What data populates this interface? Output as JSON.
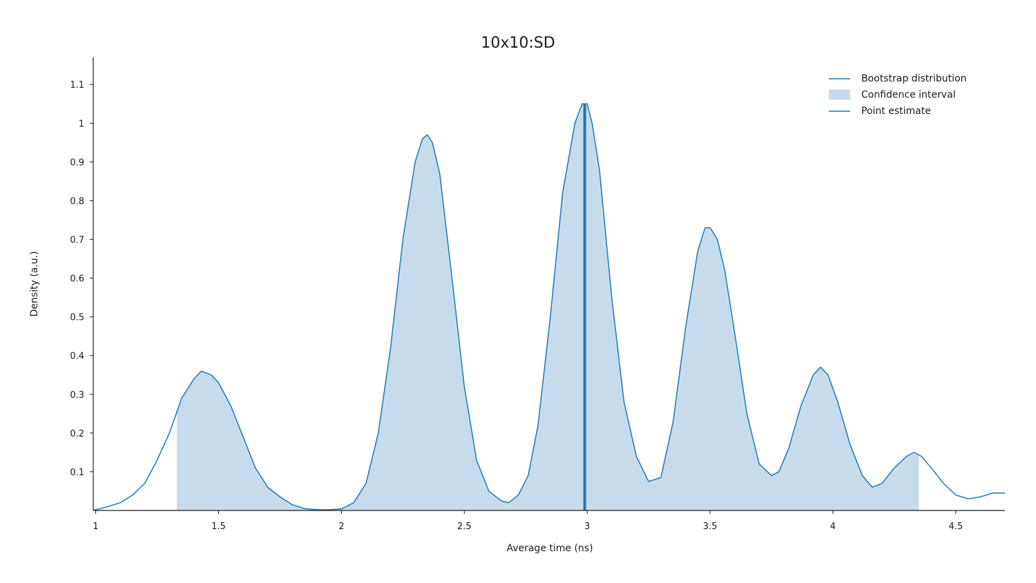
{
  "colors": {
    "line": "#1f77b4",
    "fill": "#c6dcec",
    "axis": "#1a1a1a"
  },
  "chart_data": {
    "type": "area",
    "title": "10x10:SD",
    "xlabel": "Average time (ns)",
    "ylabel": "Density (a.u.)",
    "xlim": [
      0.99,
      4.7
    ],
    "ylim": [
      0,
      1.17
    ],
    "xticks": [
      1,
      1.5,
      2,
      2.5,
      3,
      3.5,
      4,
      4.5
    ],
    "xtick_labels": [
      "1",
      "1.5",
      "2",
      "2.5",
      "3",
      "3.5",
      "4",
      "4.5"
    ],
    "yticks": [
      0.1,
      0.2,
      0.3,
      0.4,
      0.5,
      0.6,
      0.7,
      0.8,
      0.9,
      1,
      1.1
    ],
    "ytick_labels": [
      "0.1",
      "0.2",
      "0.3",
      "0.4",
      "0.5",
      "0.6",
      "0.7",
      "0.8",
      "0.9",
      "1",
      "1.1"
    ],
    "grid": false,
    "legend_position": "top-right",
    "legend": [
      "Bootstrap distribution",
      "Confidence interval",
      "Point estimate"
    ],
    "confidence_interval": [
      1.33,
      4.35
    ],
    "point_estimate": 2.99,
    "series": [
      {
        "name": "Bootstrap distribution",
        "x": [
          0.99,
          1.05,
          1.1,
          1.15,
          1.2,
          1.25,
          1.3,
          1.35,
          1.4,
          1.43,
          1.47,
          1.5,
          1.55,
          1.6,
          1.65,
          1.7,
          1.75,
          1.8,
          1.85,
          1.9,
          1.95,
          2.0,
          2.05,
          2.1,
          2.15,
          2.2,
          2.25,
          2.3,
          2.33,
          2.35,
          2.37,
          2.4,
          2.45,
          2.5,
          2.55,
          2.6,
          2.65,
          2.68,
          2.72,
          2.76,
          2.8,
          2.85,
          2.9,
          2.95,
          2.98,
          3.0,
          3.02,
          3.05,
          3.1,
          3.15,
          3.2,
          3.25,
          3.3,
          3.35,
          3.4,
          3.45,
          3.48,
          3.5,
          3.53,
          3.56,
          3.6,
          3.65,
          3.7,
          3.75,
          3.78,
          3.82,
          3.87,
          3.92,
          3.95,
          3.98,
          4.02,
          4.07,
          4.12,
          4.16,
          4.2,
          4.25,
          4.3,
          4.33,
          4.36,
          4.4,
          4.45,
          4.5,
          4.55,
          4.6,
          4.65,
          4.7
        ],
        "y": [
          0.0,
          0.01,
          0.02,
          0.04,
          0.07,
          0.13,
          0.2,
          0.29,
          0.34,
          0.36,
          0.35,
          0.33,
          0.27,
          0.19,
          0.11,
          0.06,
          0.035,
          0.015,
          0.005,
          0.002,
          0.002,
          0.004,
          0.02,
          0.07,
          0.2,
          0.42,
          0.7,
          0.9,
          0.96,
          0.97,
          0.95,
          0.87,
          0.6,
          0.32,
          0.13,
          0.05,
          0.025,
          0.02,
          0.04,
          0.09,
          0.22,
          0.5,
          0.82,
          1.0,
          1.05,
          1.05,
          1.0,
          0.88,
          0.55,
          0.28,
          0.14,
          0.075,
          0.085,
          0.23,
          0.47,
          0.67,
          0.73,
          0.73,
          0.7,
          0.62,
          0.46,
          0.25,
          0.12,
          0.09,
          0.1,
          0.16,
          0.27,
          0.35,
          0.37,
          0.35,
          0.28,
          0.17,
          0.09,
          0.06,
          0.07,
          0.11,
          0.14,
          0.15,
          0.14,
          0.11,
          0.07,
          0.04,
          0.03,
          0.035,
          0.045,
          0.045
        ]
      }
    ]
  }
}
